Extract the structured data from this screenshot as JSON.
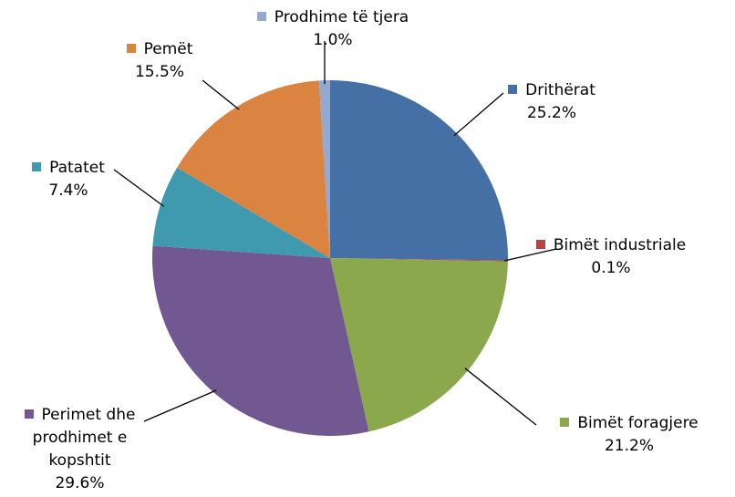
{
  "chart_data": {
    "type": "pie",
    "categories": [
      "Drithërat",
      "Bimët industriale",
      "Bimët foragjere",
      "Perimet dhe prodhimet e kopshtit",
      "Patatet",
      "Pemët",
      "Prodhime të tjera"
    ],
    "values": [
      25.2,
      0.1,
      21.2,
      29.6,
      7.4,
      15.5,
      1.0
    ],
    "value_labels": [
      "25.2%",
      "0.1%",
      "21.2%",
      "29.6%",
      "7.4%",
      "15.5%",
      "1.0%"
    ],
    "colors": [
      "#4470a5",
      "#b84440",
      "#8ba94c",
      "#715891",
      "#3f9ab0",
      "#db8340",
      "#94a9d2"
    ]
  }
}
